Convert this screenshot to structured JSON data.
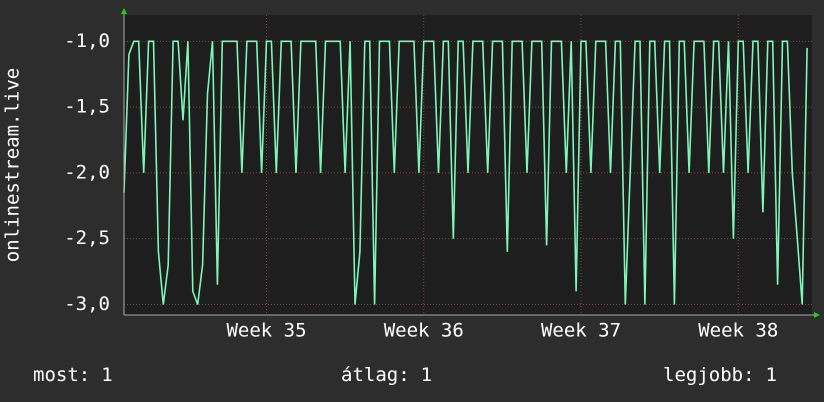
{
  "chart_data": {
    "type": "line",
    "y_label": "onlinestream.live",
    "x": [
      0,
      1,
      2,
      3,
      4,
      5,
      6,
      7,
      8,
      9,
      10,
      11,
      12,
      13,
      14,
      15,
      16,
      17,
      18,
      19,
      20,
      21,
      22,
      23,
      24,
      25,
      26,
      27,
      28,
      29,
      30,
      31,
      32,
      33,
      34,
      35,
      36,
      37,
      38,
      39,
      40,
      41,
      42,
      43,
      44,
      45,
      46,
      47,
      48,
      49,
      50,
      51,
      52,
      53,
      54,
      55,
      56,
      57,
      58,
      59,
      60,
      61,
      62,
      63,
      64,
      65,
      66,
      67,
      68,
      69,
      70,
      71,
      72,
      73,
      74,
      75,
      76,
      77,
      78,
      79,
      80,
      81,
      82,
      83,
      84,
      85,
      86,
      87,
      88,
      89,
      90,
      91,
      92,
      93,
      94,
      95,
      96,
      97,
      98,
      99,
      100,
      101,
      102,
      103,
      104,
      105,
      106,
      107,
      108,
      109,
      110,
      111,
      112,
      113,
      114,
      115,
      116,
      117,
      118,
      119,
      120,
      121,
      122,
      123,
      124,
      125,
      126,
      127,
      128,
      129,
      130,
      131,
      132,
      133,
      134,
      135,
      136,
      137,
      138,
      139
    ],
    "series": [
      {
        "color": "#7ff5b8",
        "values": [
          -2.15,
          -1.1,
          -1.0,
          -1.0,
          -2.0,
          -1.0,
          -1.0,
          -2.6,
          -3.0,
          -2.7,
          -1.0,
          -1.0,
          -1.6,
          -1.0,
          -2.9,
          -3.0,
          -2.7,
          -1.4,
          -1.0,
          -2.85,
          -1.0,
          -1.0,
          -1.0,
          -1.0,
          -2.0,
          -1.0,
          -1.0,
          -1.0,
          -2.0,
          -1.0,
          -1.0,
          -2.0,
          -1.0,
          -1.0,
          -1.0,
          -2.0,
          -1.0,
          -1.0,
          -1.0,
          -1.0,
          -2.0,
          -1.0,
          -1.0,
          -1.0,
          -1.0,
          -2.0,
          -1.0,
          -3.0,
          -2.6,
          -1.0,
          -1.0,
          -3.0,
          -1.0,
          -1.0,
          -1.0,
          -2.0,
          -1.0,
          -1.0,
          -1.0,
          -1.0,
          -2.0,
          -1.0,
          -1.0,
          -1.0,
          -2.0,
          -1.0,
          -1.0,
          -2.5,
          -1.0,
          -1.0,
          -2.0,
          -1.0,
          -1.0,
          -1.0,
          -2.0,
          -1.0,
          -1.0,
          -1.0,
          -2.6,
          -1.0,
          -1.0,
          -1.0,
          -2.0,
          -1.0,
          -1.0,
          -1.0,
          -2.55,
          -1.0,
          -1.0,
          -1.0,
          -2.0,
          -1.0,
          -2.9,
          -1.0,
          -1.0,
          -2.0,
          -1.0,
          -1.0,
          -1.0,
          -2.0,
          -1.0,
          -1.0,
          -3.0,
          -2.0,
          -1.0,
          -1.0,
          -3.0,
          -1.0,
          -1.0,
          -2.0,
          -1.0,
          -1.0,
          -3.0,
          -1.0,
          -1.0,
          -2.0,
          -1.0,
          -1.0,
          -1.0,
          -2.0,
          -1.0,
          -1.0,
          -2.0,
          -1.0,
          -2.5,
          -1.0,
          -1.0,
          -2.0,
          -1.0,
          -1.0,
          -2.3,
          -1.0,
          -1.0,
          -2.85,
          -1.0,
          -1.0,
          -2.0,
          -2.5,
          -3.0,
          -1.05
        ]
      }
    ],
    "xlim": [
      0,
      140
    ],
    "xticks": [
      {
        "value": 29,
        "label": "Week 35"
      },
      {
        "value": 61,
        "label": "Week 36"
      },
      {
        "value": 93,
        "label": "Week 37"
      },
      {
        "value": 125,
        "label": "Week 38"
      }
    ],
    "ylim": [
      -3.08,
      -0.8
    ],
    "yticks": [
      {
        "value": -3,
        "label": "-3,0"
      },
      {
        "value": -2.5,
        "label": "-2,5"
      },
      {
        "value": -2,
        "label": "-2,0"
      },
      {
        "value": -1.5,
        "label": "-1,5"
      },
      {
        "value": -1,
        "label": "-1,0"
      }
    ],
    "grid": true,
    "legend": [
      {
        "label": "most:",
        "value": 1
      },
      {
        "label": "átlag:",
        "value": 1
      },
      {
        "label": "legjobb:",
        "value": 1
      }
    ]
  }
}
